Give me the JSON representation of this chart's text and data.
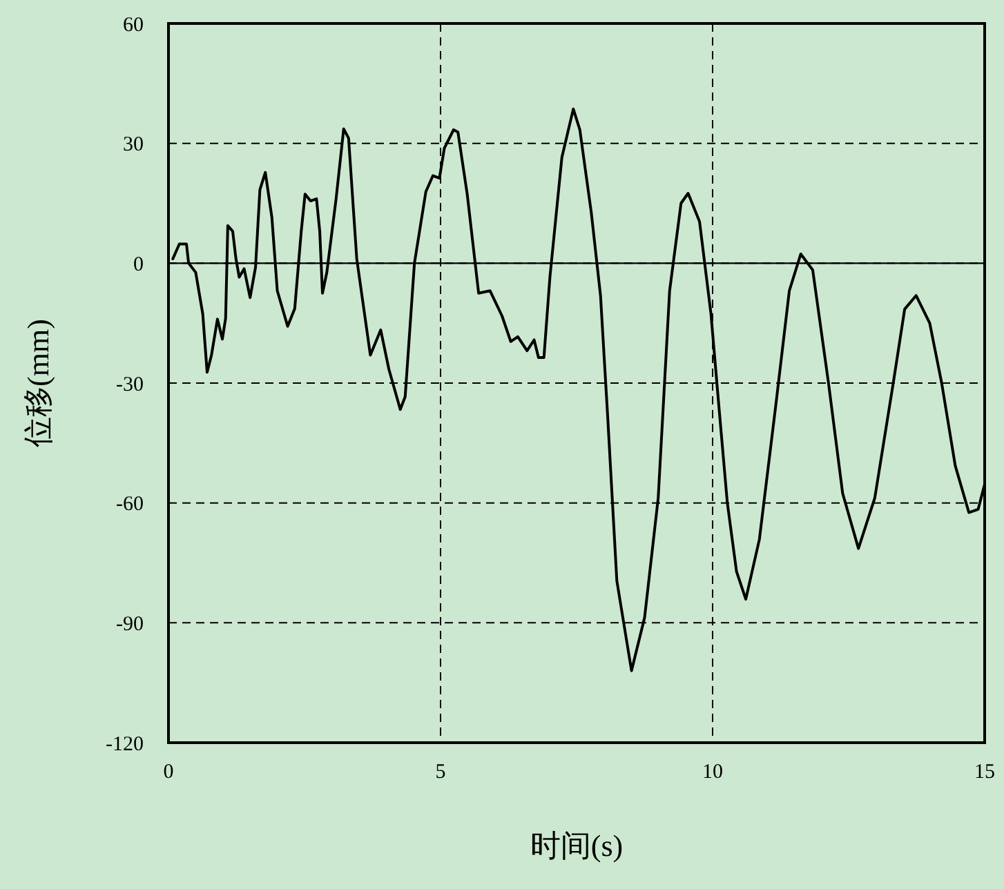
{
  "chart_data": {
    "type": "line",
    "xlabel": "时间(s)",
    "ylabel": "位移(mm)",
    "xlim": [
      0,
      15
    ],
    "xticks": [
      0,
      5,
      10,
      15
    ],
    "ylim": [
      -120,
      60
    ],
    "yticks": [
      -120,
      -90,
      -60,
      -30,
      0,
      30,
      60
    ],
    "grid": true,
    "marker": "none",
    "line_style": "solid",
    "ref_lines": [
      {
        "axis": "y",
        "value": 0,
        "line_style": "solid",
        "color": "#000000"
      }
    ],
    "series": [
      {
        "color": "#000000",
        "x": [
          0.08,
          0.2,
          0.33,
          0.37,
          0.5,
          0.63,
          0.71,
          0.79,
          0.9,
          0.99,
          1.05,
          1.09,
          1.18,
          1.24,
          1.3,
          1.39,
          1.5,
          1.6,
          1.68,
          1.78,
          1.9,
          2.0,
          2.19,
          2.32,
          2.44,
          2.51,
          2.61,
          2.72,
          2.78,
          2.83,
          2.91,
          3.08,
          3.22,
          3.31,
          3.46,
          3.71,
          3.9,
          4.05,
          4.26,
          4.35,
          4.52,
          4.73,
          4.86,
          4.98,
          5.07,
          5.24,
          5.32,
          5.49,
          5.7,
          5.91,
          6.13,
          6.29,
          6.42,
          6.59,
          6.72,
          6.8,
          6.9,
          7.01,
          7.23,
          7.44,
          7.56,
          7.77,
          7.94,
          8.07,
          8.24,
          8.51,
          8.75,
          9.0,
          9.21,
          9.42,
          9.55,
          9.76,
          9.97,
          10.1,
          10.27,
          10.44,
          10.61,
          10.86,
          11.16,
          11.41,
          11.62,
          11.84,
          12.13,
          12.39,
          12.68,
          12.98,
          13.32,
          13.53,
          13.74,
          13.99,
          14.21,
          14.46,
          14.71,
          14.88,
          15.0
        ],
        "values": [
          1.1,
          4.8,
          4.8,
          0,
          -2.3,
          -12.7,
          -27.3,
          -23,
          -14,
          -19,
          -13.8,
          9.4,
          8,
          1.1,
          -3.5,
          -1.4,
          -8.6,
          -1,
          18.4,
          22.7,
          11.5,
          -6.9,
          -15.8,
          -11.4,
          8,
          17.3,
          15.6,
          16.1,
          8,
          -7.5,
          -2.3,
          16.1,
          33.6,
          31.3,
          1.1,
          -23,
          -16.7,
          -26.5,
          -36.6,
          -33.4,
          0,
          17.9,
          21.9,
          21.3,
          28.8,
          33.4,
          32.8,
          17.3,
          -7.5,
          -6.9,
          -13.2,
          -19.6,
          -18.4,
          -21.9,
          -19.2,
          -23.6,
          -23.6,
          -3.5,
          26.5,
          38.6,
          33.4,
          12.7,
          -8.1,
          -38,
          -79.5,
          -102,
          -88.7,
          -58.8,
          -6.9,
          15,
          17.5,
          10.4,
          -12.7,
          -33.4,
          -59.9,
          -77.2,
          -84.1,
          -69.1,
          -35.7,
          -6.9,
          2.3,
          -1.7,
          -30,
          -57.6,
          -71.4,
          -58.8,
          -30,
          -11.5,
          -8.1,
          -15,
          -30,
          -50.7,
          -62.4,
          -61.6,
          -55.3
        ]
      }
    ]
  }
}
